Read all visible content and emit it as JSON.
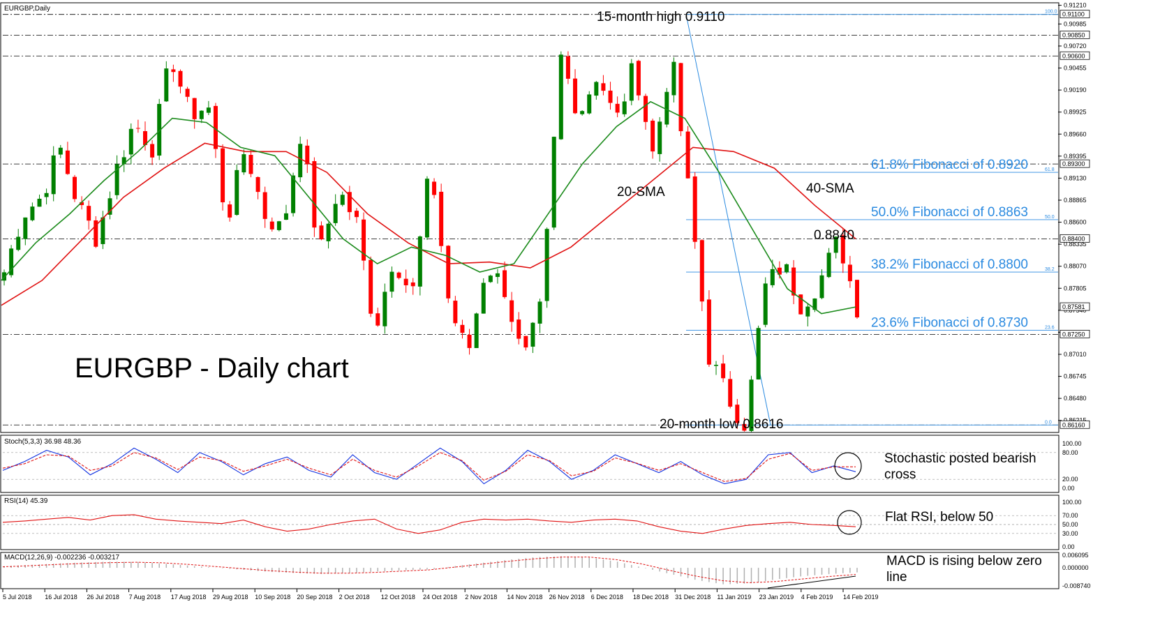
{
  "colors": {
    "bull": "#008000",
    "bear": "#ff0000",
    "sma20": "#1a8a1a",
    "sma40": "#e01010",
    "fib": "#2a8ae0",
    "stoch_main": "#1030e0",
    "stoch_signal": "#e01010",
    "rsi": "#e01010",
    "macd_hist": "#b0b0b0",
    "macd_signal": "#e01010",
    "grid": "#000000"
  },
  "chart_data": [
    {
      "type": "candlestick",
      "symbol_label": "EURGBP,Daily",
      "title": "EURGBP - Daily chart",
      "ylim": [
        0.8607,
        0.9124
      ],
      "yticks": [
        "0.91210",
        "0.90985",
        "0.90720",
        "0.90455",
        "0.90190",
        "0.89925",
        "0.89660",
        "0.89395",
        "0.89130",
        "0.88865",
        "0.88600",
        "0.88335",
        "0.88070",
        "0.87805",
        "0.87540",
        "0.87275",
        "0.87010",
        "0.86745",
        "0.86480",
        "0.86215"
      ],
      "price_labels": [
        {
          "price": 0.911,
          "text": "0.91100"
        },
        {
          "price": 0.9085,
          "text": "0.90850"
        },
        {
          "price": 0.906,
          "text": "0.90600"
        },
        {
          "price": 0.893,
          "text": "0.89300"
        },
        {
          "price": 0.884,
          "text": "0.88400"
        },
        {
          "price": 0.8758,
          "text": "0.87581"
        },
        {
          "price": 0.8725,
          "text": "0.87250"
        },
        {
          "price": 0.8616,
          "text": "0.86160"
        }
      ],
      "dashed_levels": [
        0.911,
        0.9085,
        0.906,
        0.893,
        0.884,
        0.8725,
        0.8616
      ],
      "fibonacci": {
        "high": 0.911,
        "low": 0.8616,
        "levels": [
          {
            "ratio": "100.0",
            "price": 0.911,
            "label": ""
          },
          {
            "ratio": "61.8",
            "price": 0.892,
            "label": "61.8% Fibonacci of 0.8920"
          },
          {
            "ratio": "50.0",
            "price": 0.8863,
            "label": "50.0% Fibonacci of 0.8863"
          },
          {
            "ratio": "38.2",
            "price": 0.88,
            "label": "38.2% Fibonacci of 0.8800"
          },
          {
            "ratio": "23.6",
            "price": 0.873,
            "label": "23.6% Fibonacci of 0.8730"
          },
          {
            "ratio": "0.0",
            "price": 0.8616,
            "label": ""
          }
        ]
      },
      "annotations": {
        "high": "15-month high 0.9110",
        "low": "20-month low 0.8616",
        "level": "0.8840",
        "sma20": "20-SMA",
        "sma40": "40-SMA"
      },
      "x_labels": [
        "5 Jul 2018",
        "16 Jul 2018",
        "26 Jul 2018",
        "7 Aug 2018",
        "17 Aug 2018",
        "29 Aug 2018",
        "10 Sep 2018",
        "20 Sep 2018",
        "2 Oct 2018",
        "12 Oct 2018",
        "24 Oct 2018",
        "2 Nov 2018",
        "14 Nov 2018",
        "26 Nov 2018",
        "6 Dec 2018",
        "18 Dec 2018",
        "31 Dec 2018",
        "11 Jan 2019",
        "23 Jan 2019",
        "4 Feb 2019",
        "14 Feb 2019"
      ],
      "close_path": [
        0.88,
        0.887,
        0.889,
        0.895,
        0.888,
        0.884,
        0.892,
        0.898,
        0.895,
        0.906,
        0.899,
        0.9,
        0.886,
        0.895,
        0.887,
        0.885,
        0.897,
        0.882,
        0.89,
        0.886,
        0.873,
        0.882,
        0.877,
        0.893,
        0.876,
        0.87,
        0.881,
        0.878,
        0.869,
        0.876,
        0.906,
        0.899,
        0.904,
        0.898,
        0.905,
        0.894,
        0.906,
        0.888,
        0.87,
        0.865,
        0.8616,
        0.878,
        0.881,
        0.876,
        0.879,
        0.884,
        0.8758
      ],
      "sma20_path": [
        0.879,
        0.8835,
        0.887,
        0.891,
        0.8945,
        0.8985,
        0.898,
        0.895,
        0.894,
        0.889,
        0.884,
        0.881,
        0.883,
        0.882,
        0.88,
        0.881,
        0.887,
        0.893,
        0.8975,
        0.9005,
        0.8985,
        0.892,
        0.885,
        0.878,
        0.875,
        0.8758
      ],
      "sma40_path": [
        0.876,
        0.879,
        0.884,
        0.889,
        0.8925,
        0.8955,
        0.8945,
        0.8945,
        0.892,
        0.887,
        0.8835,
        0.881,
        0.8812,
        0.8805,
        0.883,
        0.887,
        0.891,
        0.895,
        0.8945,
        0.8925,
        0.888,
        0.884
      ]
    },
    {
      "type": "line",
      "label": "Stoch(5,3,3) 36.98 48.36",
      "ylim": [
        0,
        100
      ],
      "yticks": [
        "100.00",
        "80.00",
        "20.00",
        "0.00"
      ],
      "levels": [
        80,
        20
      ],
      "series": [
        {
          "values": [
            40,
            60,
            85,
            70,
            30,
            55,
            90,
            65,
            35,
            80,
            60,
            30,
            55,
            70,
            40,
            25,
            75,
            35,
            20,
            55,
            90,
            60,
            10,
            40,
            85,
            60,
            20,
            40,
            75,
            55,
            35,
            60,
            30,
            10,
            20,
            75,
            80,
            35,
            50,
            37
          ]
        },
        {
          "values": [
            45,
            55,
            75,
            72,
            40,
            50,
            80,
            68,
            42,
            70,
            62,
            38,
            50,
            65,
            45,
            30,
            65,
            40,
            25,
            50,
            80,
            62,
            18,
            38,
            75,
            62,
            28,
            38,
            68,
            56,
            40,
            55,
            35,
            15,
            22,
            65,
            78,
            40,
            48,
            48
          ]
        }
      ],
      "annotation": "Stochastic posted bearish cross"
    },
    {
      "type": "line",
      "label": "RSI(14) 45.39",
      "ylim": [
        0,
        100
      ],
      "yticks": [
        "100.00",
        "70.00",
        "50.00",
        "30.00",
        "0.00"
      ],
      "levels": [
        70,
        50,
        30
      ],
      "series": [
        {
          "values": [
            55,
            58,
            62,
            66,
            60,
            70,
            72,
            62,
            58,
            55,
            52,
            60,
            45,
            35,
            40,
            50,
            58,
            62,
            40,
            30,
            38,
            55,
            62,
            60,
            62,
            58,
            55,
            60,
            62,
            58,
            45,
            35,
            30,
            40,
            48,
            52,
            55,
            50,
            48,
            45
          ]
        }
      ],
      "annotation": "Flat RSI, below 50"
    },
    {
      "type": "bar",
      "label": "MACD(12,26,9) -0.002236 -0.003217",
      "ylim": [
        -0.00874,
        0.00609
      ],
      "yticks": [
        "0.006095",
        "0.000000",
        "-0.008740"
      ],
      "histogram": [
        0.0008,
        0.0014,
        0.0021,
        0.0026,
        0.003,
        0.0028,
        0.002,
        0.001,
        0.0,
        -0.001,
        -0.002,
        -0.0026,
        -0.003,
        -0.0025,
        -0.0018,
        -0.0012,
        -0.0008,
        0.001,
        0.0025,
        0.004,
        0.0052,
        0.0056,
        0.005,
        0.003,
        0.0,
        -0.003,
        -0.006,
        -0.008,
        -0.0075,
        -0.0055,
        -0.004,
        -0.003,
        -0.0022
      ],
      "signal": [
        0.0005,
        0.001,
        0.0016,
        0.0021,
        0.0025,
        0.0027,
        0.0024,
        0.0016,
        0.0006,
        -0.0004,
        -0.0014,
        -0.0021,
        -0.0026,
        -0.0026,
        -0.0022,
        -0.0016,
        -0.001,
        0.0004,
        0.0018,
        0.0032,
        0.0044,
        0.0052,
        0.0052,
        0.004,
        0.0018,
        -0.0012,
        -0.004,
        -0.0062,
        -0.0072,
        -0.0066,
        -0.0054,
        -0.0042,
        -0.0032
      ],
      "annotation": "MACD is rising below zero line"
    }
  ]
}
